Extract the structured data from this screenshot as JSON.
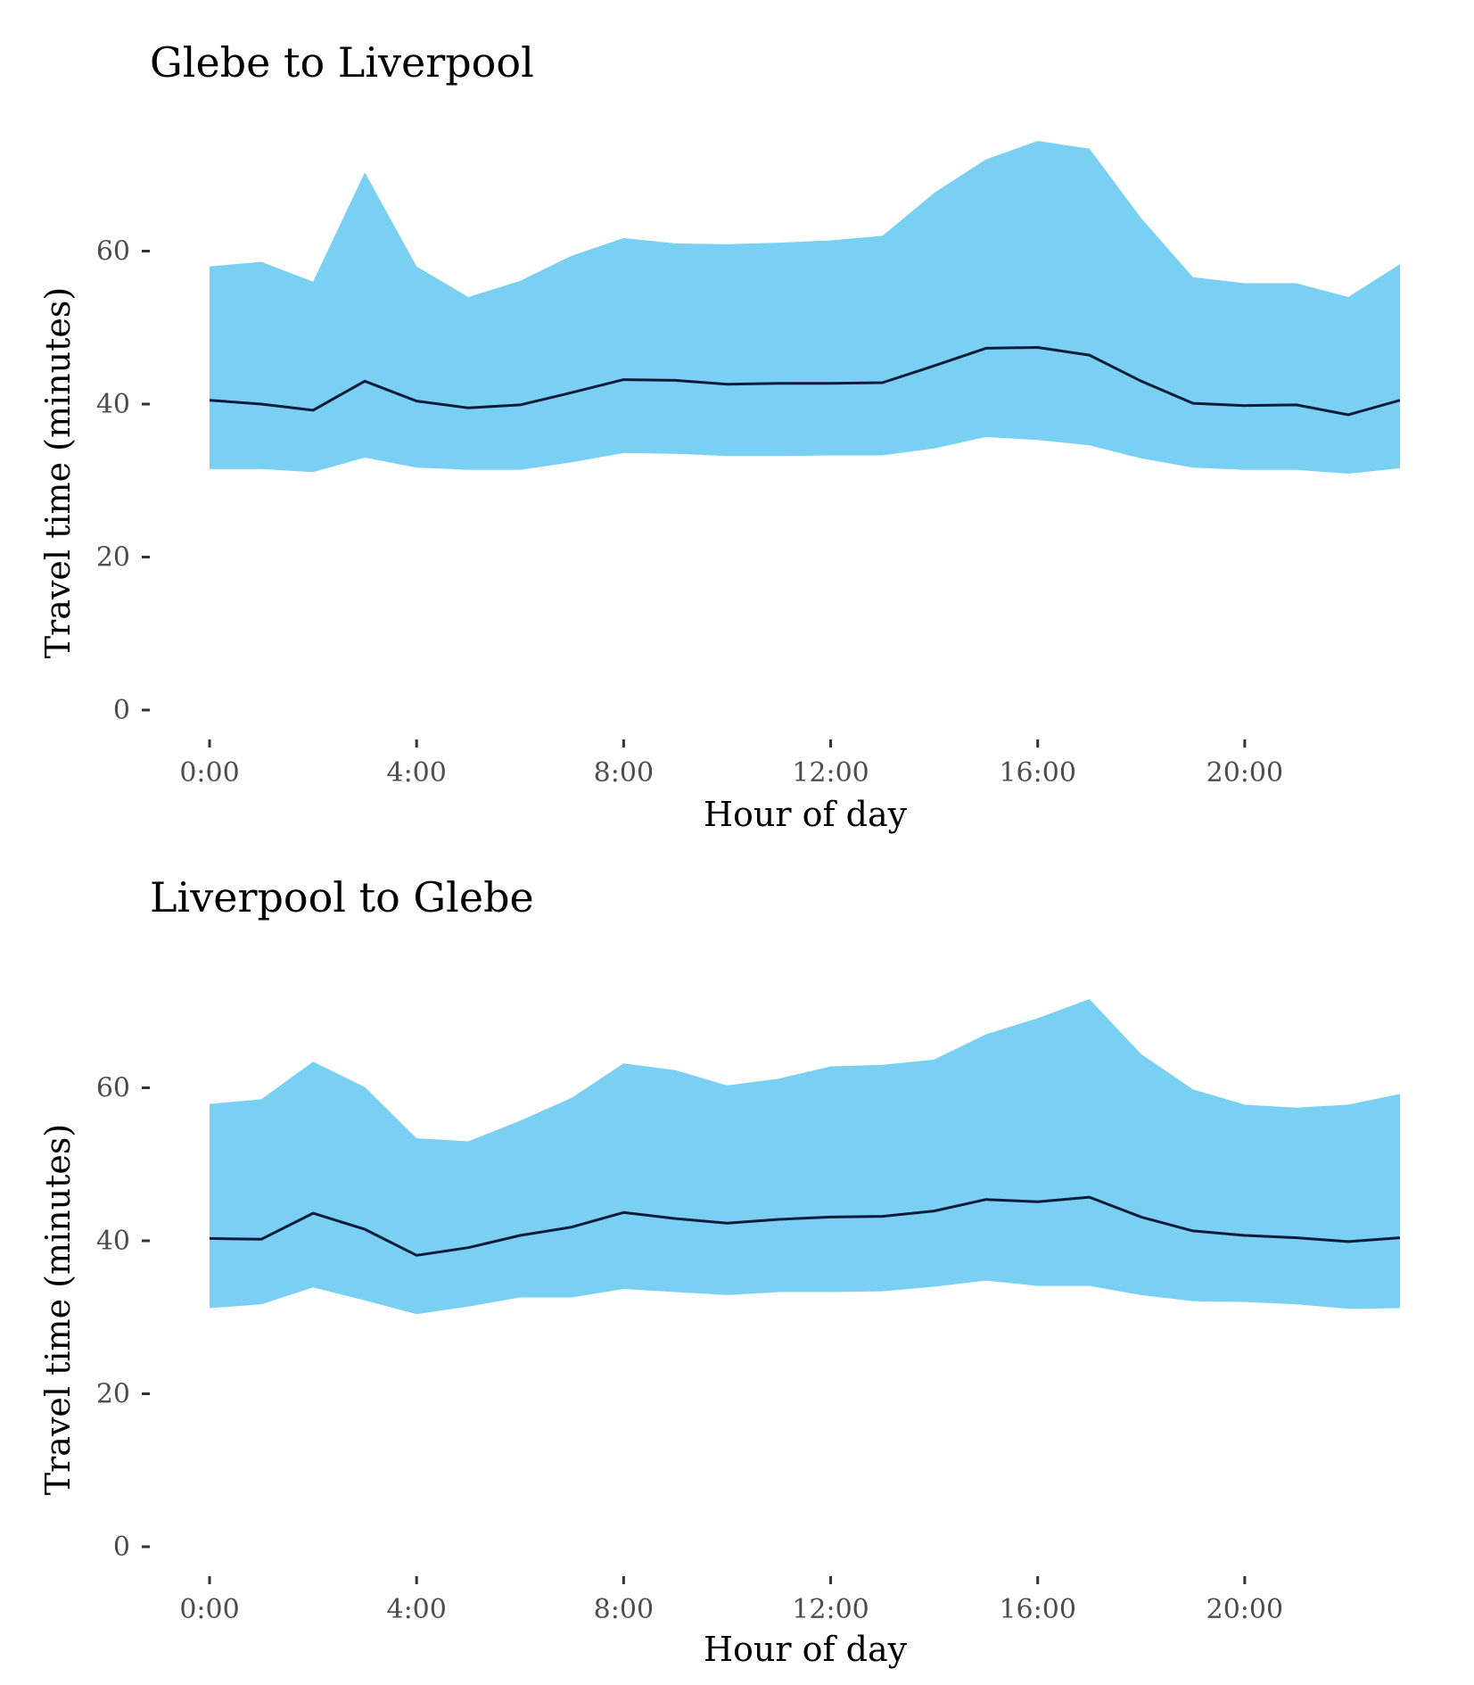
{
  "chart_data": [
    {
      "type": "area",
      "title": "Glebe to Liverpool",
      "xlabel": "Hour of day",
      "ylabel": "Travel time (minutes)",
      "ylim": [
        0,
        75
      ],
      "xlim": [
        0,
        23
      ],
      "x_tick_values": [
        0,
        4,
        8,
        12,
        16,
        20
      ],
      "x_tick_labels": [
        "0:00",
        "4:00",
        "8:00",
        "12:00",
        "16:00",
        "20:00"
      ],
      "y_tick_values": [
        0,
        20,
        40,
        60
      ],
      "y_tick_labels": [
        "0",
        "20",
        "40",
        "60"
      ],
      "grid": false,
      "legend": "none",
      "colors": {
        "band": "#79d0f2",
        "line": "#0d1b3a"
      },
      "x": [
        0,
        1,
        2,
        3,
        4,
        5,
        6,
        7,
        8,
        9,
        10,
        11,
        12,
        13,
        14,
        15,
        16,
        17,
        18,
        19,
        20,
        21,
        22,
        23
      ],
      "series": [
        {
          "role": "band_upper",
          "values": [
            58,
            58.6,
            56,
            70.3,
            58,
            54,
            56.1,
            59.4,
            61.7,
            61,
            60.9,
            61.1,
            61.4,
            62,
            67.6,
            72,
            74.4,
            73.4,
            64.3,
            56.6,
            55.8,
            55.8,
            54,
            58.3
          ]
        },
        {
          "role": "line",
          "values": [
            40.5,
            40,
            39.2,
            43,
            40.4,
            39.5,
            39.9,
            41.5,
            43.2,
            43.1,
            42.6,
            42.7,
            42.7,
            42.8,
            45,
            47.3,
            47.4,
            46.4,
            43,
            40.1,
            39.8,
            39.9,
            38.6,
            40.5
          ]
        },
        {
          "role": "band_lower",
          "values": [
            31.5,
            31.5,
            31.1,
            33,
            31.7,
            31.4,
            31.4,
            32.4,
            33.6,
            33.5,
            33.2,
            33.2,
            33.3,
            33.3,
            34.2,
            35.7,
            35.3,
            34.6,
            32.9,
            31.7,
            31.4,
            31.4,
            30.9,
            31.6
          ]
        }
      ]
    },
    {
      "type": "area",
      "title": "Liverpool to Glebe",
      "xlabel": "Hour of day",
      "ylabel": "Travel time (minutes)",
      "ylim": [
        0,
        75
      ],
      "xlim": [
        0,
        23
      ],
      "x_tick_values": [
        0,
        4,
        8,
        12,
        16,
        20
      ],
      "x_tick_labels": [
        "0:00",
        "4:00",
        "8:00",
        "12:00",
        "16:00",
        "20:00"
      ],
      "y_tick_values": [
        0,
        20,
        40,
        60
      ],
      "y_tick_labels": [
        "0",
        "20",
        "40",
        "60"
      ],
      "grid": false,
      "legend": "none",
      "colors": {
        "band": "#79d0f2",
        "line": "#0d1b3a"
      },
      "x": [
        0,
        1,
        2,
        3,
        4,
        5,
        6,
        7,
        8,
        9,
        10,
        11,
        12,
        13,
        14,
        15,
        16,
        17,
        18,
        19,
        20,
        21,
        22,
        23
      ],
      "series": [
        {
          "role": "band_upper",
          "values": [
            57.9,
            58.5,
            63.4,
            60.1,
            53.4,
            53,
            55.7,
            58.7,
            63.2,
            62.3,
            60.3,
            61.2,
            62.8,
            63,
            63.7,
            67,
            69.1,
            71.6,
            64.4,
            59.8,
            57.8,
            57.4,
            57.8,
            59.2
          ]
        },
        {
          "role": "line",
          "values": [
            40.3,
            40.2,
            43.6,
            41.5,
            38.1,
            39.1,
            40.7,
            41.8,
            43.7,
            42.9,
            42.3,
            42.8,
            43.1,
            43.2,
            43.9,
            45.4,
            45.1,
            45.7,
            43.1,
            41.3,
            40.7,
            40.4,
            39.9,
            40.4
          ]
        },
        {
          "role": "band_lower",
          "values": [
            31.2,
            31.7,
            33.9,
            32.2,
            30.4,
            31.4,
            32.6,
            32.6,
            33.7,
            33.3,
            32.9,
            33.3,
            33.3,
            33.4,
            34,
            34.8,
            34.1,
            34.1,
            32.9,
            32.1,
            32,
            31.7,
            31.1,
            31.2
          ]
        }
      ]
    }
  ]
}
